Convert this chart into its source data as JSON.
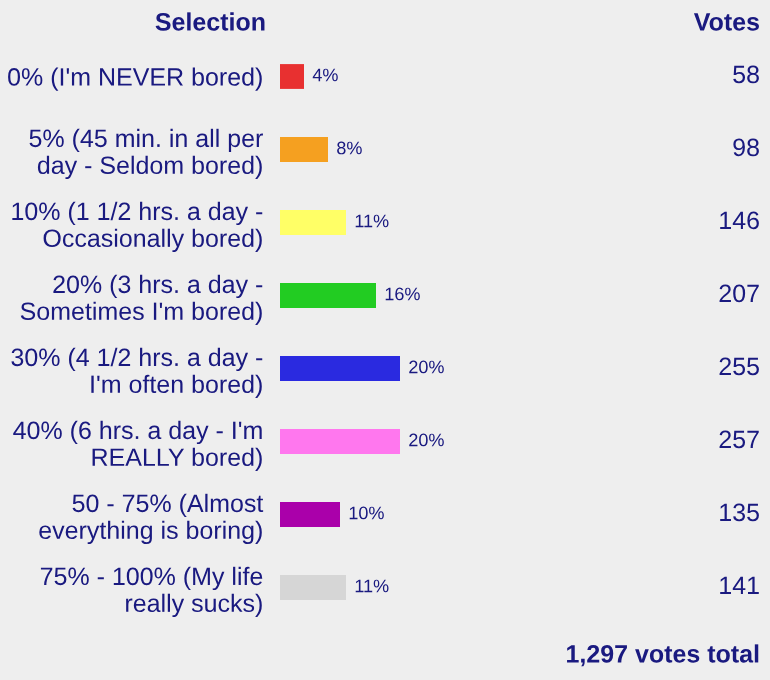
{
  "chart_data": {
    "type": "bar",
    "orientation": "horizontal",
    "ylabel": "Selection",
    "categories": [
      "0% (I'm NEVER bored)",
      "5% (45 min. in all per day - Seldom bored)",
      "10% (1 1/2 hrs. a day - Occasionally bored)",
      "20% (3 hrs. a day - Sometimes I'm bored)",
      "30% (4 1/2 hrs. a day - I'm often bored)",
      "40% (6 hrs. a day - I'm REALLY bored)",
      "50 - 75% (Almost everything is boring)",
      "75% - 100% (My life really sucks)"
    ],
    "values": [
      4,
      8,
      11,
      16,
      20,
      20,
      10,
      11
    ],
    "value_labels": [
      "4%",
      "8%",
      "11%",
      "16%",
      "20%",
      "20%",
      "10%",
      "11%"
    ],
    "colors": [
      "#e83030",
      "#f5a020",
      "#ffff66",
      "#22cc22",
      "#2a2ae0",
      "#ff77ee",
      "#aa00aa",
      "#d6d6d6"
    ],
    "annotations": [
      "Votes",
      "58",
      "98",
      "146",
      "207",
      "255",
      "257",
      "135",
      "141",
      "1,297 votes total"
    ],
    "grid": false,
    "legend": false
  }
}
